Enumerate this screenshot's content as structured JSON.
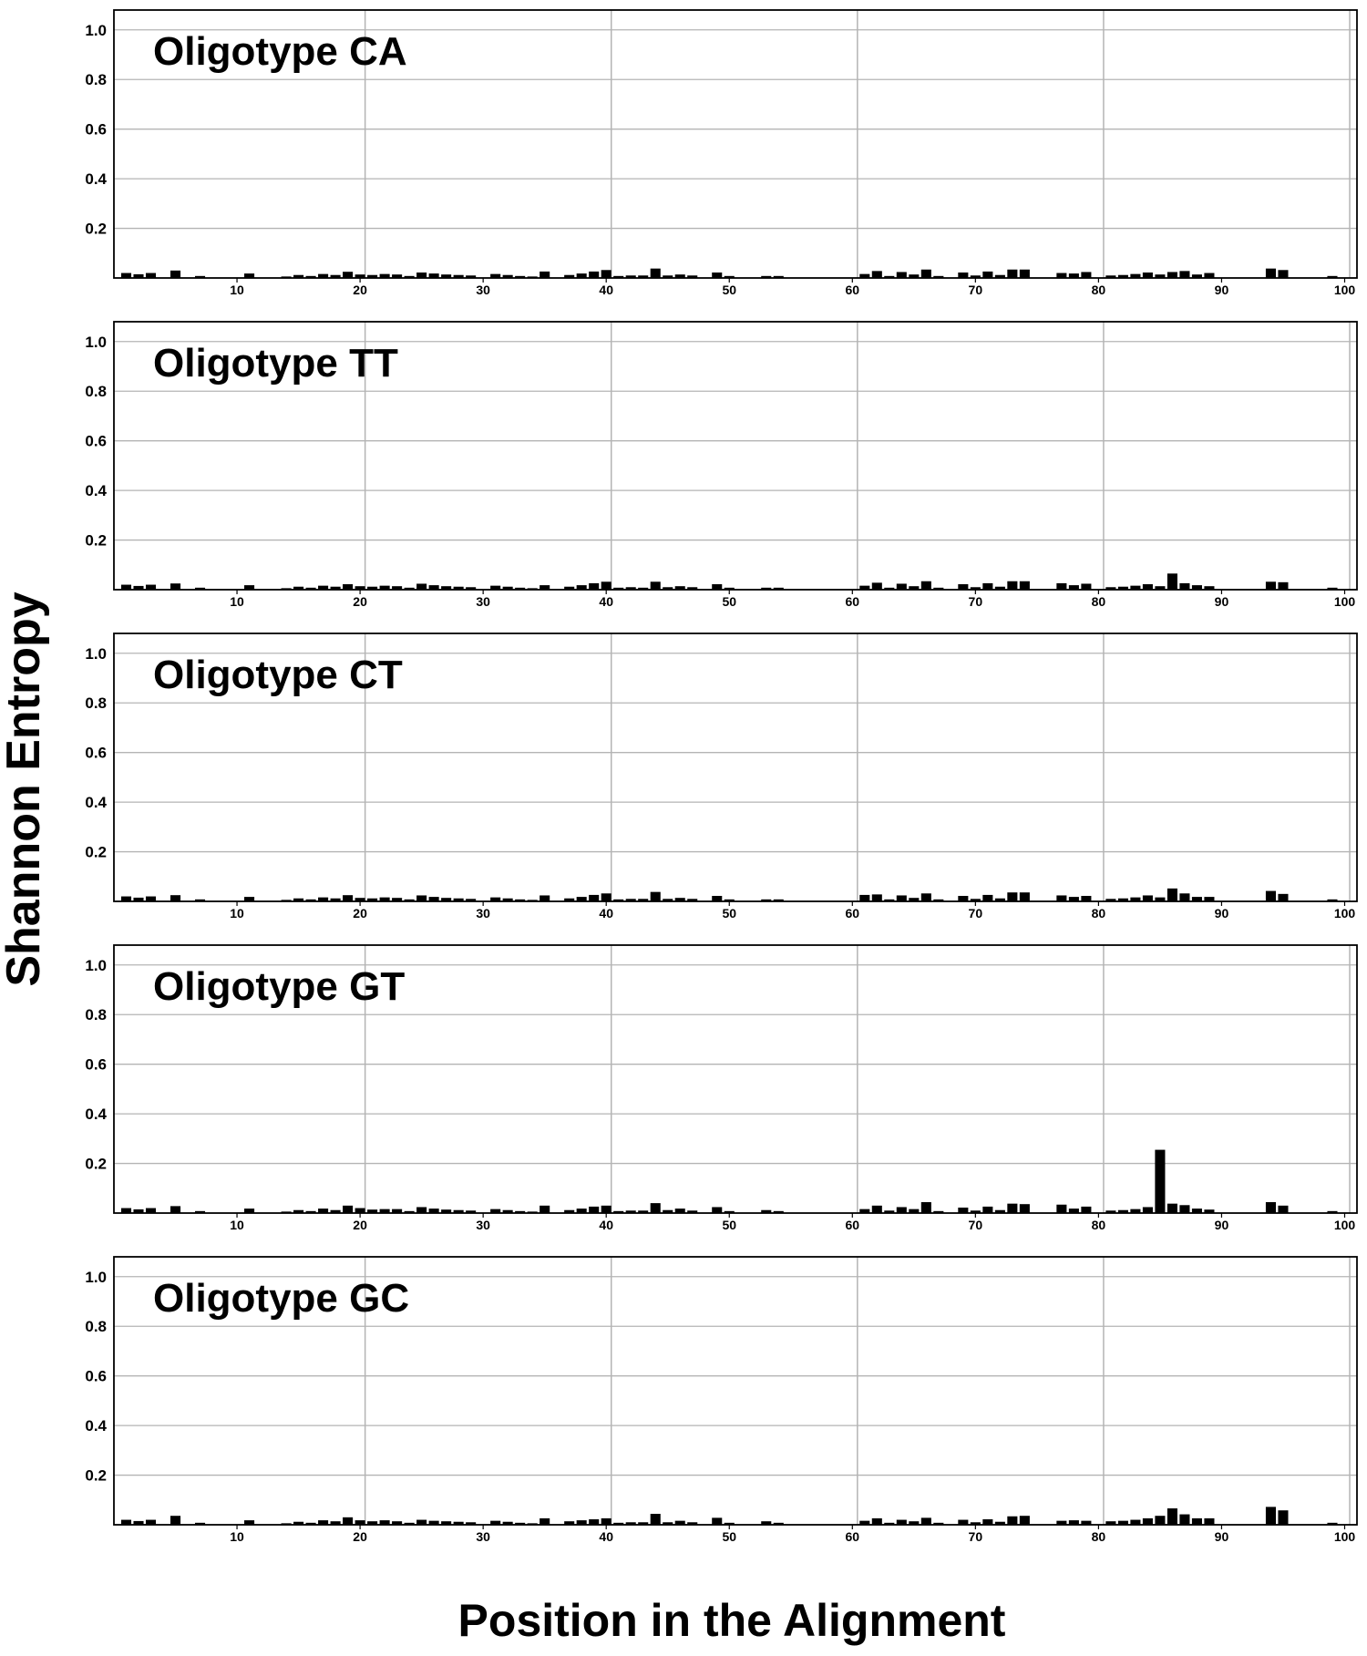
{
  "figure": {
    "ylabel": "Shannon Entropy",
    "xlabel": "Position in the Alignment"
  },
  "chart_data": {
    "type": "bar",
    "xlabel": "Position in the Alignment",
    "ylabel": "Shannon Entropy",
    "xlim": [
      0,
      101
    ],
    "ylim": [
      0,
      1.08
    ],
    "xticks": [
      10,
      20,
      30,
      40,
      50,
      60,
      70,
      80,
      90,
      100
    ],
    "yticks": [
      0.2,
      0.4,
      0.6,
      0.8,
      1.0
    ],
    "ytick_labels": [
      "0.2",
      "0.4",
      "0.6",
      "0.8",
      "1.0"
    ],
    "grid": true,
    "bar_color": "#000000",
    "grid_color": "#b4b4b4",
    "panels": [
      {
        "title": "Oligotype CA",
        "values": [
          0.02,
          0.015,
          0.02,
          0,
          0.03,
          0,
          0.008,
          0,
          0,
          0,
          0.018,
          0,
          0,
          0.006,
          0.012,
          0.008,
          0.016,
          0.012,
          0.025,
          0.014,
          0.012,
          0.016,
          0.014,
          0.008,
          0.022,
          0.018,
          0.014,
          0.012,
          0.01,
          0,
          0.016,
          0.012,
          0.008,
          0.006,
          0.026,
          0,
          0.012,
          0.018,
          0.026,
          0.032,
          0.008,
          0.01,
          0.01,
          0.038,
          0.01,
          0.014,
          0.01,
          0,
          0.022,
          0.008,
          0,
          0,
          0.008,
          0.008,
          0,
          0,
          0,
          0,
          0,
          0,
          0.016,
          0.028,
          0.008,
          0.024,
          0.014,
          0.034,
          0.008,
          0,
          0.022,
          0.01,
          0.026,
          0.012,
          0.034,
          0.034,
          0,
          0,
          0.02,
          0.018,
          0.024,
          0,
          0.01,
          0.012,
          0.016,
          0.022,
          0.014,
          0.024,
          0.028,
          0.014,
          0.02,
          0,
          0,
          0,
          0,
          0.038,
          0.032,
          0,
          0,
          0,
          0.008,
          0
        ]
      },
      {
        "title": "Oligotype TT",
        "values": [
          0.02,
          0.015,
          0.02,
          0,
          0.025,
          0,
          0.008,
          0,
          0,
          0,
          0.018,
          0,
          0,
          0.006,
          0.012,
          0.008,
          0.016,
          0.012,
          0.022,
          0.014,
          0.012,
          0.016,
          0.014,
          0.008,
          0.024,
          0.018,
          0.014,
          0.012,
          0.01,
          0,
          0.016,
          0.012,
          0.008,
          0.006,
          0.018,
          0,
          0.012,
          0.018,
          0.026,
          0.032,
          0.008,
          0.01,
          0.008,
          0.032,
          0.01,
          0.014,
          0.01,
          0,
          0.022,
          0.008,
          0,
          0,
          0.008,
          0.008,
          0,
          0,
          0,
          0,
          0,
          0,
          0.016,
          0.028,
          0.008,
          0.024,
          0.014,
          0.034,
          0.008,
          0,
          0.022,
          0.01,
          0.026,
          0.012,
          0.034,
          0.034,
          0,
          0,
          0.026,
          0.018,
          0.024,
          0,
          0.01,
          0.012,
          0.016,
          0.022,
          0.014,
          0.065,
          0.026,
          0.018,
          0.014,
          0,
          0,
          0,
          0,
          0.032,
          0.03,
          0,
          0,
          0,
          0.008,
          0
        ]
      },
      {
        "title": "Oligotype CT",
        "values": [
          0.02,
          0.015,
          0.02,
          0,
          0.025,
          0,
          0.008,
          0,
          0,
          0,
          0.018,
          0,
          0,
          0.006,
          0.012,
          0.008,
          0.016,
          0.012,
          0.025,
          0.014,
          0.012,
          0.016,
          0.014,
          0.008,
          0.024,
          0.018,
          0.014,
          0.012,
          0.01,
          0,
          0.016,
          0.012,
          0.008,
          0.006,
          0.024,
          0,
          0.012,
          0.018,
          0.026,
          0.032,
          0.008,
          0.01,
          0.01,
          0.038,
          0.01,
          0.014,
          0.01,
          0,
          0.022,
          0.008,
          0,
          0,
          0.008,
          0.008,
          0,
          0,
          0,
          0,
          0,
          0,
          0.026,
          0.028,
          0.008,
          0.024,
          0.014,
          0.032,
          0.008,
          0,
          0.022,
          0.01,
          0.026,
          0.012,
          0.036,
          0.036,
          0,
          0,
          0.024,
          0.018,
          0.022,
          0,
          0.01,
          0.012,
          0.016,
          0.024,
          0.016,
          0.052,
          0.032,
          0.018,
          0.018,
          0,
          0,
          0,
          0,
          0.042,
          0.03,
          0,
          0,
          0,
          0.008,
          0
        ]
      },
      {
        "title": "Oligotype GT",
        "values": [
          0.02,
          0.015,
          0.02,
          0,
          0.028,
          0,
          0.008,
          0,
          0,
          0,
          0.018,
          0,
          0,
          0.006,
          0.012,
          0.008,
          0.018,
          0.012,
          0.03,
          0.02,
          0.014,
          0.016,
          0.016,
          0.008,
          0.024,
          0.018,
          0.014,
          0.012,
          0.01,
          0,
          0.016,
          0.012,
          0.008,
          0.006,
          0.03,
          0,
          0.012,
          0.018,
          0.026,
          0.03,
          0.008,
          0.01,
          0.01,
          0.04,
          0.012,
          0.018,
          0.01,
          0,
          0.024,
          0.008,
          0,
          0,
          0.012,
          0.008,
          0,
          0,
          0,
          0,
          0,
          0,
          0.016,
          0.03,
          0.01,
          0.024,
          0.016,
          0.044,
          0.008,
          0,
          0.022,
          0.01,
          0.026,
          0.012,
          0.038,
          0.036,
          0,
          0,
          0.034,
          0.018,
          0.026,
          0,
          0.01,
          0.012,
          0.016,
          0.024,
          0.255,
          0.038,
          0.032,
          0.018,
          0.014,
          0,
          0,
          0,
          0,
          0.044,
          0.03,
          0,
          0,
          0,
          0.008,
          0
        ]
      },
      {
        "title": "Oligotype GC",
        "values": [
          0.02,
          0.015,
          0.02,
          0,
          0.036,
          0,
          0.008,
          0,
          0,
          0,
          0.018,
          0,
          0,
          0.006,
          0.012,
          0.008,
          0.018,
          0.014,
          0.03,
          0.018,
          0.014,
          0.018,
          0.014,
          0.008,
          0.02,
          0.016,
          0.014,
          0.012,
          0.01,
          0,
          0.016,
          0.012,
          0.008,
          0.006,
          0.026,
          0,
          0.014,
          0.018,
          0.022,
          0.026,
          0.008,
          0.01,
          0.01,
          0.044,
          0.01,
          0.016,
          0.01,
          0,
          0.028,
          0.008,
          0,
          0,
          0.014,
          0.008,
          0,
          0,
          0,
          0,
          0,
          0,
          0.016,
          0.026,
          0.008,
          0.02,
          0.014,
          0.028,
          0.008,
          0,
          0.02,
          0.01,
          0.022,
          0.012,
          0.034,
          0.036,
          0,
          0,
          0.016,
          0.018,
          0.016,
          0,
          0.014,
          0.016,
          0.02,
          0.026,
          0.036,
          0.066,
          0.042,
          0.026,
          0.026,
          0,
          0,
          0,
          0,
          0.072,
          0.058,
          0,
          0,
          0,
          0.008,
          0
        ]
      }
    ]
  }
}
